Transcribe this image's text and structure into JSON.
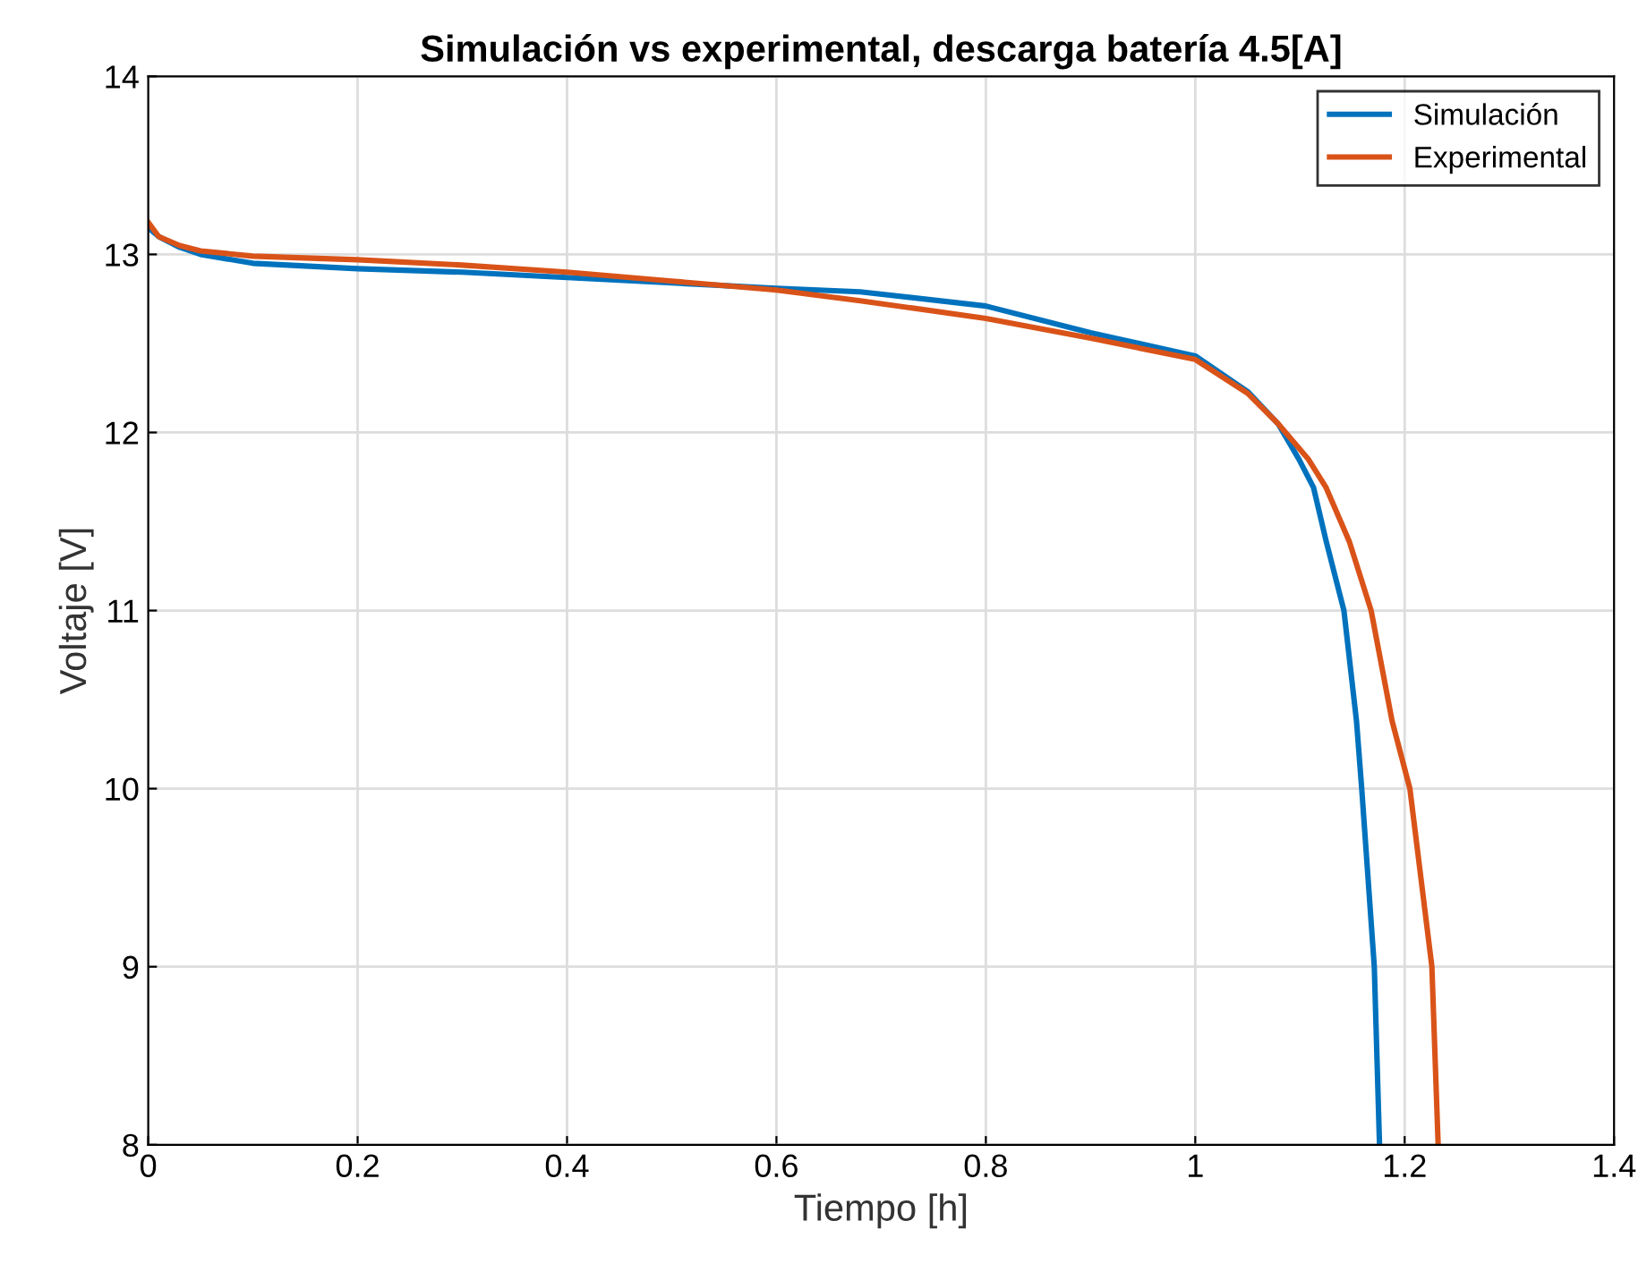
{
  "chart_data": {
    "type": "line",
    "title": "Simulación vs experimental, descarga batería 4.5[A]",
    "xlabel": "Tiempo [h]",
    "ylabel": "Voltaje [V]",
    "xlim": [
      0,
      1.4
    ],
    "ylim": [
      8,
      14
    ],
    "xticks": [
      0,
      0.2,
      0.4,
      0.6,
      0.8,
      1,
      1.2,
      1.4
    ],
    "yticks": [
      8,
      9,
      10,
      11,
      12,
      13,
      14
    ],
    "grid": true,
    "legend": "top right",
    "line_style": "solid",
    "marker": "none",
    "series": [
      {
        "name": "Simulación",
        "color": "#0072bd",
        "x": [
          0,
          0.01,
          0.03,
          0.05,
          0.1,
          0.2,
          0.3,
          0.4,
          0.5,
          0.6,
          0.68,
          0.8,
          0.9,
          1.0,
          1.05,
          1.079,
          1.099,
          1.113,
          1.125,
          1.142,
          1.154,
          1.159,
          1.171,
          1.176
        ],
        "values": [
          13.15,
          13.1,
          13.04,
          13.0,
          12.95,
          12.92,
          12.9,
          12.87,
          12.84,
          12.81,
          12.79,
          12.71,
          12.56,
          12.43,
          12.23,
          12.05,
          11.85,
          11.69,
          11.39,
          11.0,
          10.38,
          10.0,
          9.0,
          8.0
        ]
      },
      {
        "name": "Experimental",
        "color": "#d95319",
        "x": [
          0,
          0.01,
          0.03,
          0.05,
          0.1,
          0.2,
          0.3,
          0.4,
          0.5,
          0.6,
          0.68,
          0.8,
          0.9,
          1.0,
          1.05,
          1.079,
          1.108,
          1.125,
          1.147,
          1.168,
          1.188,
          1.205,
          1.226,
          1.232
        ],
        "values": [
          13.18,
          13.1,
          13.05,
          13.02,
          12.99,
          12.97,
          12.94,
          12.9,
          12.85,
          12.8,
          12.74,
          12.64,
          12.53,
          12.41,
          12.22,
          12.05,
          11.85,
          11.69,
          11.39,
          11.0,
          10.38,
          10.0,
          9.0,
          8.0
        ]
      }
    ]
  }
}
